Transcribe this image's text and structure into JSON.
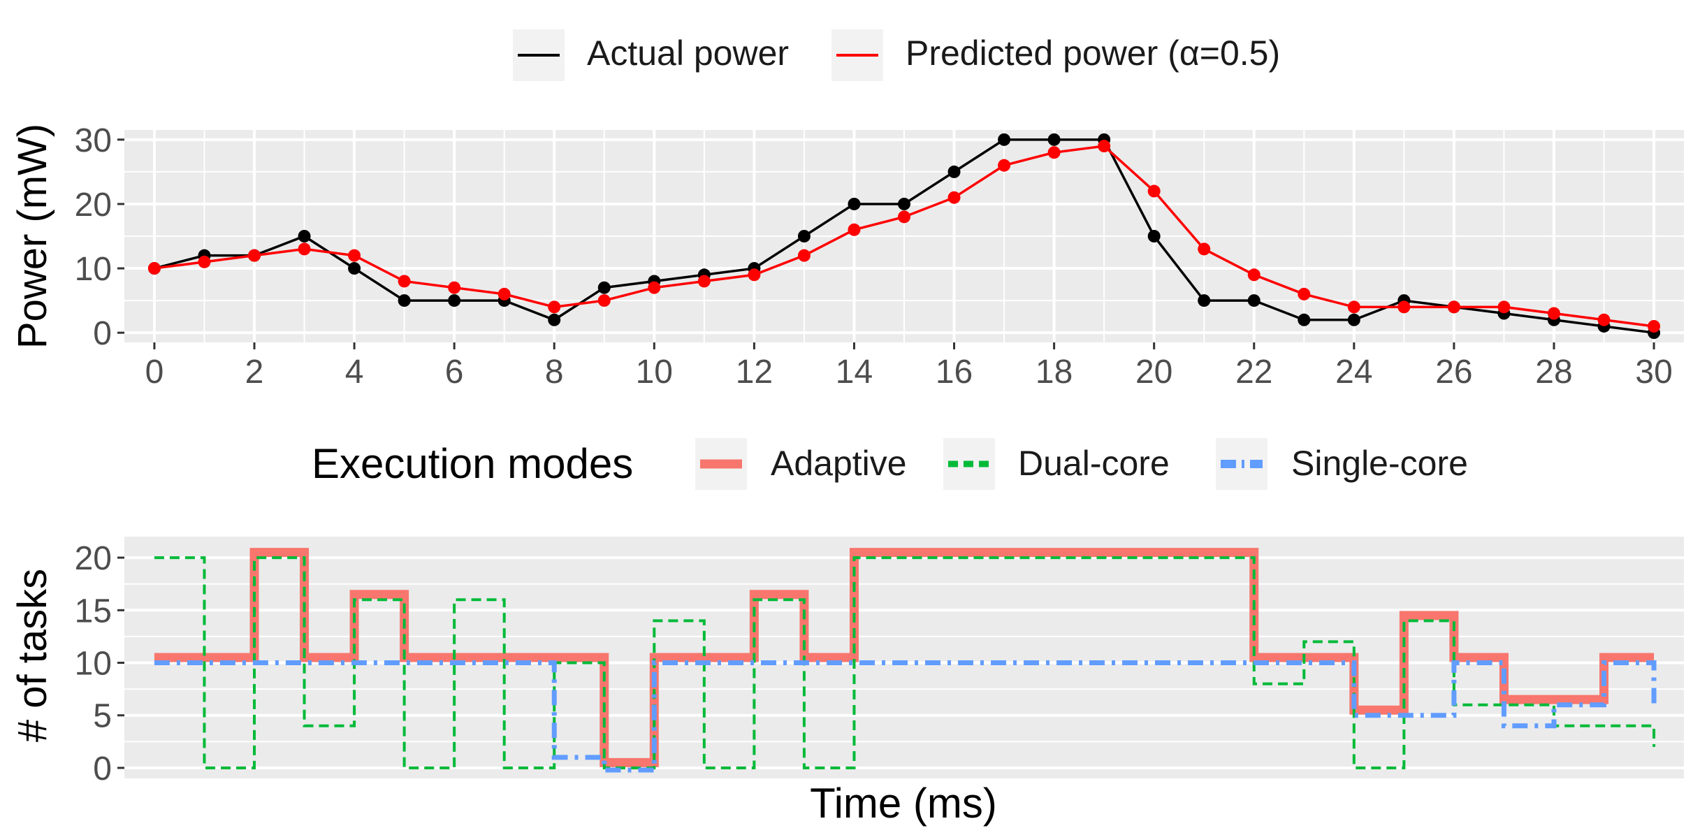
{
  "chart_data": [
    {
      "type": "line",
      "title": "",
      "xlabel": "",
      "ylabel": "Power (mW)",
      "x": [
        0,
        1,
        2,
        3,
        4,
        5,
        6,
        7,
        8,
        9,
        10,
        11,
        12,
        13,
        14,
        15,
        16,
        17,
        18,
        19,
        20,
        21,
        22,
        23,
        24,
        25,
        26,
        27,
        28,
        29,
        30
      ],
      "xlim": [
        -0.6,
        30.6
      ],
      "ylim": [
        -1.5,
        31.5
      ],
      "x_ticks": [
        0,
        2,
        4,
        6,
        8,
        10,
        12,
        14,
        16,
        18,
        20,
        22,
        24,
        26,
        28,
        30
      ],
      "y_ticks": [
        0,
        10,
        20,
        30
      ],
      "grid": true,
      "legend_position": "top",
      "series": [
        {
          "name": "Actual power",
          "color": "#000000",
          "values": [
            10,
            12,
            12,
            15,
            10,
            5,
            5,
            5,
            2,
            7,
            8,
            9,
            10,
            15,
            20,
            20,
            25,
            30,
            30,
            30,
            15,
            5,
            5,
            2,
            2,
            5,
            4,
            3,
            2,
            1,
            0
          ]
        },
        {
          "name": "Predicted power (α=0.5)",
          "color": "#ff0000",
          "values": [
            10,
            11,
            12,
            13,
            12,
            8,
            7,
            6,
            4,
            5,
            7,
            8,
            9,
            12,
            16,
            18,
            21,
            26,
            28,
            29,
            22,
            13,
            9,
            6,
            4,
            4,
            4,
            4,
            3,
            2,
            1
          ]
        }
      ]
    },
    {
      "type": "line",
      "step": true,
      "title": "",
      "xlabel": "Time (ms)",
      "ylabel": "# of tasks",
      "x": [
        0,
        1,
        2,
        3,
        4,
        5,
        6,
        7,
        8,
        9,
        10,
        11,
        12,
        13,
        14,
        15,
        16,
        17,
        18,
        19,
        20,
        21,
        22,
        23,
        24,
        25,
        26,
        27,
        28,
        29,
        30
      ],
      "xlim": [
        -0.6,
        30.6
      ],
      "ylim": [
        -1,
        22
      ],
      "y_ticks": [
        0,
        5,
        10,
        15,
        20
      ],
      "grid": true,
      "legend_title": "Execution modes",
      "legend_position": "top",
      "series": [
        {
          "name": "Adaptive",
          "color": "#f8766d",
          "style": "solid",
          "values": [
            10.5,
            10.5,
            20.5,
            10.5,
            16.5,
            10.5,
            10.5,
            10.5,
            10.5,
            0.5,
            10.5,
            10.5,
            16.5,
            10.5,
            20.5,
            20.5,
            20.5,
            20.5,
            20.5,
            20.5,
            20.5,
            20.5,
            10.5,
            10.5,
            5.5,
            14.5,
            10.5,
            6.5,
            6.5,
            10.5,
            10.5
          ]
        },
        {
          "name": "Dual-core",
          "color": "#00ba38",
          "style": "dashed",
          "values": [
            20,
            0,
            20,
            4,
            16,
            0,
            16,
            0,
            10,
            0,
            14,
            0,
            16,
            0,
            20,
            20,
            20,
            20,
            20,
            20,
            20,
            20,
            8,
            12,
            0,
            14,
            6,
            6,
            4,
            4,
            2
          ]
        },
        {
          "name": "Single-core",
          "color": "#619cff",
          "style": "dashdot",
          "values": [
            10,
            10,
            10,
            10,
            10,
            10,
            10,
            10,
            1,
            -0.2,
            10,
            10,
            10,
            10,
            10,
            10,
            10,
            10,
            10,
            10,
            10,
            10,
            10,
            10,
            5,
            5,
            10,
            4,
            6,
            10,
            6
          ]
        }
      ]
    }
  ]
}
